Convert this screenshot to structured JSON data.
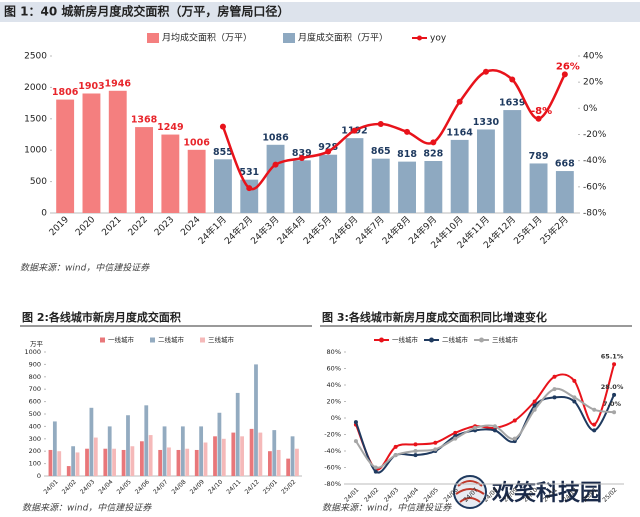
{
  "chart_data": [
    {
      "type": "bar",
      "title": "图 1：40 城新房月度成交面积（万平，房管局口径）",
      "source": "数据来源：wind，中信建投证券",
      "categories": [
        "2019",
        "2020",
        "2021",
        "2022",
        "2023",
        "2024",
        "24年1月",
        "24年2月",
        "24年3月",
        "24年4月",
        "24年5月",
        "24年6月",
        "24年7月",
        "24年8月",
        "24年9月",
        "24年10月",
        "24年11月",
        "24年12月",
        "25年1月",
        "25年2月"
      ],
      "series": [
        {
          "name": "月均成交面积（万平）",
          "color": "#f47f7f",
          "label_color": "#e8262c",
          "values": [
            1806,
            1903,
            1946,
            1368,
            1249,
            1006,
            null,
            null,
            null,
            null,
            null,
            null,
            null,
            null,
            null,
            null,
            null,
            null,
            null,
            null
          ]
        },
        {
          "name": "月度成交面积（万平）",
          "color": "#8ea9c1",
          "label_color": "#1f3a5f",
          "values": [
            null,
            null,
            null,
            null,
            null,
            null,
            855,
            531,
            1086,
            839,
            928,
            1192,
            865,
            818,
            828,
            1164,
            1330,
            1639,
            789,
            668
          ]
        },
        {
          "name": "yoy",
          "type": "line",
          "axis": "y2",
          "color": "#e8131b",
          "values": [
            null,
            null,
            null,
            null,
            null,
            null,
            -14,
            -61,
            -43,
            -38,
            -33,
            -17,
            -12,
            -18,
            -26,
            5,
            28,
            22,
            -8,
            26
          ],
          "value_labels": [
            null,
            null,
            null,
            null,
            null,
            null,
            null,
            null,
            null,
            null,
            null,
            null,
            null,
            null,
            null,
            null,
            null,
            null,
            "-8%",
            "26%"
          ]
        }
      ],
      "data_labels": true,
      "ylim": [
        0,
        2500
      ],
      "yticks": [
        0,
        500,
        1000,
        1500,
        2000,
        2500
      ],
      "y2lim": [
        -80,
        40
      ],
      "y2ticks": [
        {
          "value": -80,
          "label": "-80%"
        },
        {
          "value": -60,
          "label": "-60%"
        },
        {
          "value": -40,
          "label": "-40%"
        },
        {
          "value": -20,
          "label": "-20%"
        },
        {
          "value": 0,
          "label": "0%"
        },
        {
          "value": 20,
          "label": "20%"
        },
        {
          "value": 40,
          "label": "40%"
        }
      ],
      "grid": false
    },
    {
      "type": "bar",
      "title": "图 2:各线城市新房月度成交面积",
      "source": "数据来源：wind，中信建投证券",
      "ylabel": "万平",
      "categories": [
        "24/01",
        "24/02",
        "24/03",
        "24/04",
        "24/05",
        "24/06",
        "24/07",
        "24/08",
        "24/09",
        "24/10",
        "24/11",
        "24/12",
        "25/01",
        "25/02"
      ],
      "series": [
        {
          "name": "一线城市",
          "color": "#e8777a",
          "values": [
            210,
            80,
            220,
            220,
            210,
            280,
            210,
            210,
            210,
            320,
            350,
            380,
            200,
            140
          ]
        },
        {
          "name": "二线城市",
          "color": "#93abc0",
          "values": [
            440,
            240,
            550,
            400,
            490,
            570,
            400,
            400,
            400,
            510,
            670,
            900,
            370,
            320
          ]
        },
        {
          "name": "三线城市",
          "color": "#f5b9b9",
          "values": [
            200,
            190,
            310,
            220,
            240,
            330,
            230,
            220,
            270,
            300,
            320,
            350,
            210,
            220
          ]
        }
      ],
      "ylim": [
        0,
        1000
      ],
      "yticks": [
        0,
        100,
        200,
        300,
        400,
        500,
        600,
        700,
        800,
        900,
        1000
      ],
      "grid": false
    },
    {
      "type": "line",
      "title": "图 3:各线城市新房月度成交面积同比增速变化",
      "source": "数据来源：wind，中信建投证券",
      "categories": [
        "24/01",
        "24/02",
        "24/03",
        "24/04",
        "24/05",
        "24/06",
        "24/07",
        "24/08",
        "24/09",
        "24/10",
        "24/11",
        "24/12",
        "25/01",
        "25/02"
      ],
      "series": [
        {
          "name": "一线城市",
          "color": "#e8131b",
          "values": [
            -8,
            -62,
            -35,
            -32,
            -30,
            -18,
            -10,
            -12,
            -3,
            20,
            50,
            45,
            -8,
            65.1
          ],
          "value_labels": [
            null,
            null,
            null,
            null,
            null,
            null,
            null,
            null,
            null,
            null,
            null,
            null,
            null,
            "65.1%"
          ]
        },
        {
          "name": "二线城市",
          "color": "#1f3a5f",
          "values": [
            -5,
            -65,
            -45,
            -45,
            -40,
            -22,
            -15,
            -15,
            -28,
            15,
            25,
            20,
            -15,
            28.0
          ],
          "value_labels": [
            null,
            null,
            null,
            null,
            null,
            null,
            null,
            null,
            null,
            null,
            null,
            null,
            null,
            "28.0%"
          ]
        },
        {
          "name": "三线城市",
          "color": "#a6a6a6",
          "values": [
            -28,
            -60,
            -45,
            -40,
            -38,
            -25,
            -12,
            -10,
            -25,
            10,
            35,
            25,
            10,
            7.0
          ],
          "value_labels": [
            null,
            null,
            null,
            null,
            null,
            null,
            null,
            null,
            null,
            null,
            null,
            null,
            null,
            "7.0%"
          ]
        }
      ],
      "ylim": [
        -80,
        80
      ],
      "yticks": [
        {
          "value": -80,
          "label": "-80%"
        },
        {
          "value": -60,
          "label": "-60%"
        },
        {
          "value": -40,
          "label": "-40%"
        },
        {
          "value": -20,
          "label": "-20%"
        },
        {
          "value": 0,
          "label": "0%"
        },
        {
          "value": 20,
          "label": "20%"
        },
        {
          "value": 40,
          "label": "40%"
        },
        {
          "value": 60,
          "label": "60%"
        },
        {
          "value": 80,
          "label": "80%"
        }
      ],
      "grid": false
    }
  ],
  "watermark": "欢笑科技园"
}
